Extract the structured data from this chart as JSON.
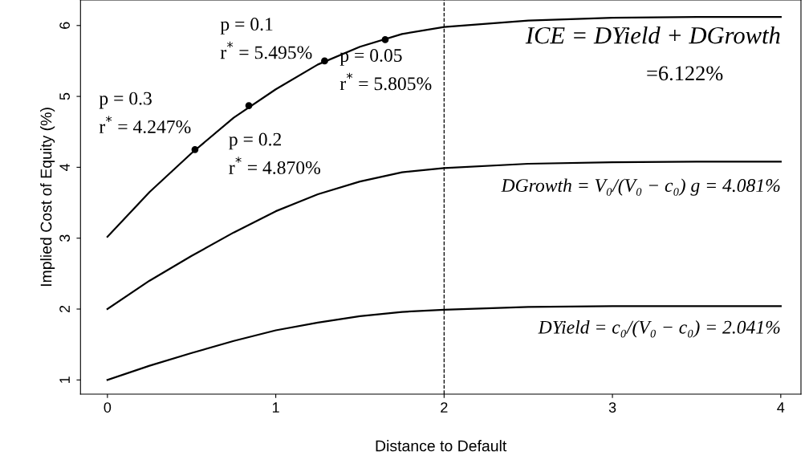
{
  "chart_data": {
    "type": "line",
    "xlabel": "Distance to Default",
    "ylabel": "Implied Cost of Equity (%)",
    "x": [
      0,
      0.25,
      0.5,
      0.75,
      1,
      1.25,
      1.5,
      1.75,
      2,
      2.5,
      3,
      3.5,
      4
    ],
    "series": [
      {
        "color": "#000000",
        "values": [
          3.02,
          3.65,
          4.2,
          4.7,
          5.1,
          5.45,
          5.7,
          5.88,
          5.98,
          6.07,
          6.11,
          6.12,
          6.12
        ]
      },
      {
        "color": "#000000",
        "values": [
          2.0,
          2.4,
          2.75,
          3.08,
          3.38,
          3.62,
          3.8,
          3.93,
          3.99,
          4.05,
          4.07,
          4.08,
          4.08
        ]
      },
      {
        "color": "#000000",
        "values": [
          1.0,
          1.2,
          1.38,
          1.55,
          1.7,
          1.81,
          1.9,
          1.96,
          1.99,
          2.03,
          2.04,
          2.04,
          2.04
        ]
      },
      {
        "type": "scatter",
        "color": "#000000",
        "x": [
          0.52,
          0.84,
          1.29,
          1.65
        ],
        "values": [
          4.25,
          4.87,
          5.5,
          5.8
        ]
      }
    ],
    "ref_lines": [
      {
        "axis": "x",
        "value": 2,
        "color": "#000000",
        "line_style": "dashed"
      }
    ],
    "annotations": [
      {
        "text": "p = 0.3\nr$^{*}$ = 4.247%",
        "x": 0.52,
        "y": 4.247
      },
      {
        "text": "p = 0.2\nr$^{*}$ = 4.870%",
        "x": 0.84,
        "y": 4.87
      },
      {
        "text": "p = 0.1\nr$^{*}$ = 5.495%",
        "x": 1.29,
        "y": 5.495
      },
      {
        "text": "p = 0.05\nr$^{*}$ = 5.805%",
        "x": 1.65,
        "y": 5.805
      },
      "ICE = DYield + DGrowth",
      "=6.122%",
      "DGrowth = V₀/(V₀ − c₀) g = 4.081%",
      "DYield = c₀/(V₀ − c₀) = 2.041%"
    ],
    "xlim": [
      -0.16,
      4.12
    ],
    "ylim": [
      0.8,
      6.36
    ],
    "xticks": [
      0,
      1,
      2,
      3,
      4
    ],
    "yticks": [
      1,
      2,
      3,
      4,
      5,
      6
    ],
    "grid": false,
    "line_style": "solid"
  }
}
